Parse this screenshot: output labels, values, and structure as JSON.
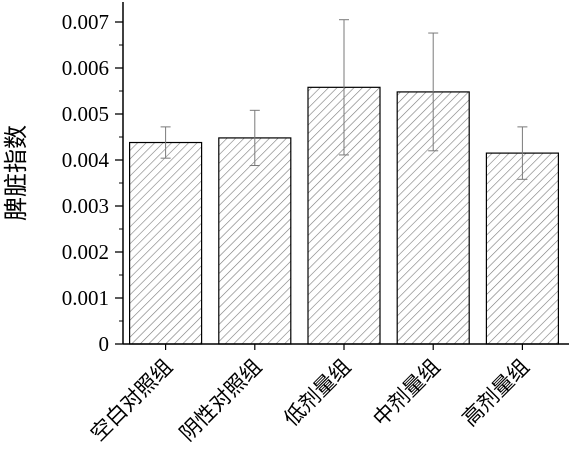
{
  "chart_data": {
    "type": "bar",
    "ylabel": "脾脏指数",
    "xlabel": "",
    "ylim": [
      0,
      0.007
    ],
    "yticks": [
      "0",
      "0.001",
      "0.002",
      "0.003",
      "0.004",
      "0.005",
      "0.006",
      "0.007"
    ],
    "categories": [
      "空白对照组",
      "阴性对照组",
      "低剂量组",
      "中剂量组",
      "高剂量组"
    ],
    "values": [
      0.00438,
      0.00448,
      0.00558,
      0.00548,
      0.00415
    ],
    "errors": [
      0.00034,
      0.0006,
      0.00147,
      0.00128,
      0.00057
    ],
    "bar_fill": "hatched",
    "bar_color": "#ffffff",
    "hatch_color": "#7a7a7a",
    "edge_color": "#000000",
    "error_bar_color": "#7a7a7a"
  }
}
